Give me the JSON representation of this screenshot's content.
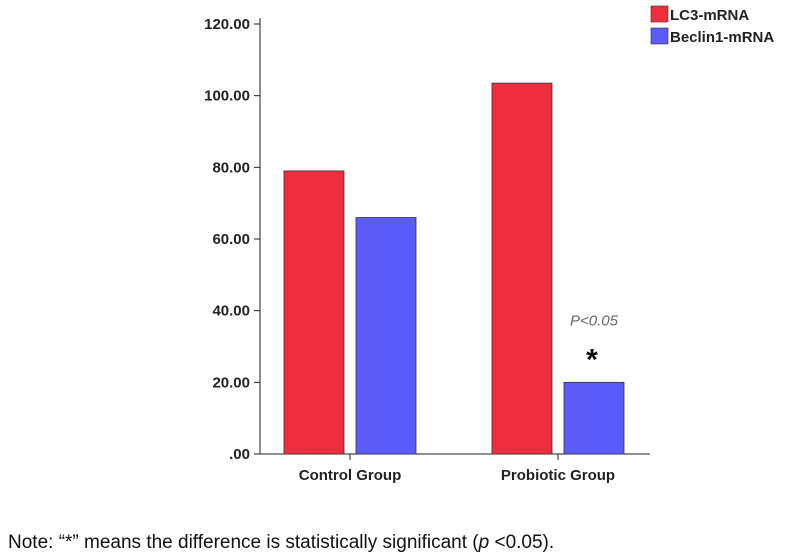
{
  "chart_data": {
    "type": "bar",
    "title": "",
    "xlabel": "",
    "ylabel": "",
    "categories": [
      "Control Group",
      "Probiotic Group"
    ],
    "series": [
      {
        "name": "LC3-mRNA",
        "color": "#ee2e3c",
        "values": [
          79,
          103.5
        ]
      },
      {
        "name": "Beclin1-mRNA",
        "color": "#5b5bfa",
        "values": [
          66,
          20
        ]
      }
    ],
    "ylim": [
      0,
      120
    ],
    "yticks": [
      ".00",
      "20.00",
      "40.00",
      "60.00",
      "80.00",
      "100.00",
      "120.00"
    ],
    "annotations": {
      "pvalue_text": "P<0.05",
      "significance_marker": "*"
    },
    "legend_position": "top-right",
    "grid": false
  },
  "note": {
    "prefix": "Note: “*” means the difference is statistically significant (",
    "p_symbol": "p",
    "suffix": " <0.05)."
  }
}
